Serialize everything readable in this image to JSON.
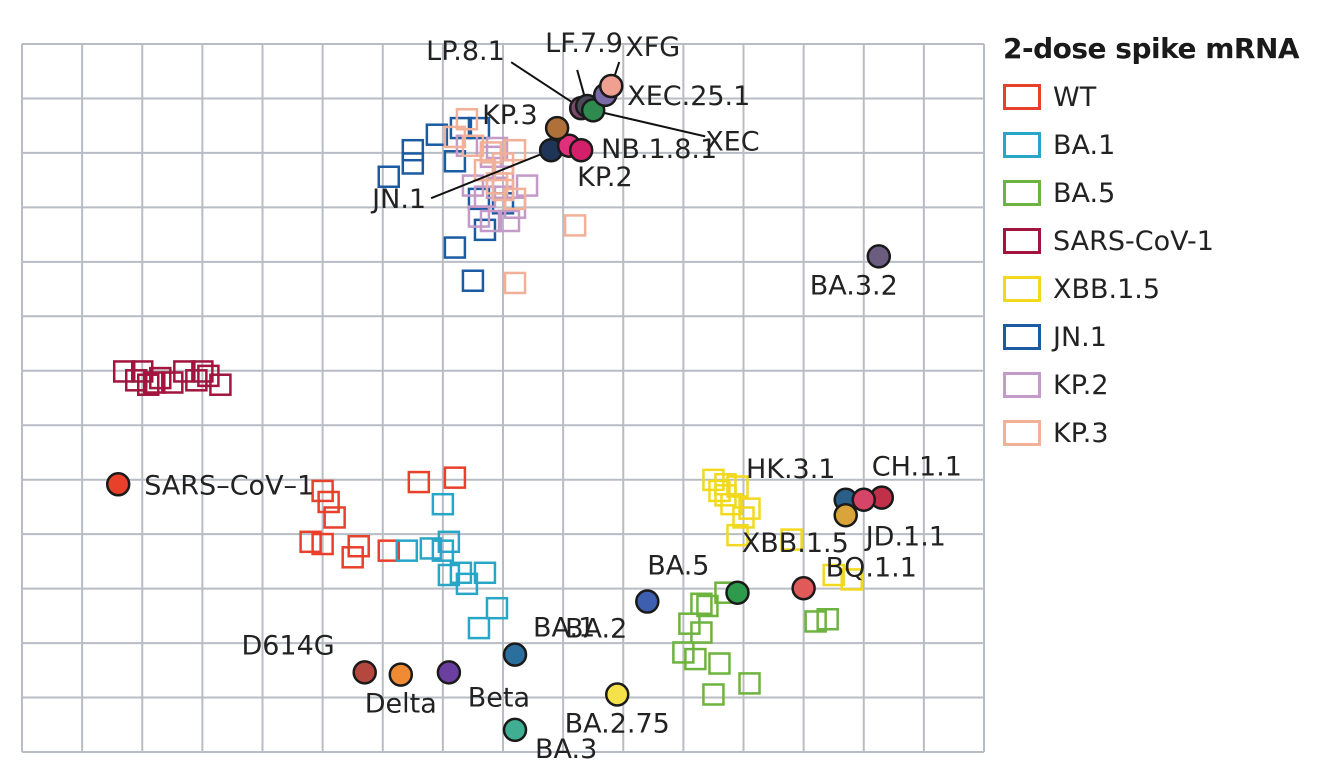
{
  "chart_data": {
    "type": "scatter",
    "title": "",
    "xlabel": "",
    "ylabel": "",
    "grid": true,
    "legend_title": "2-dose spike mRNA",
    "legend_position": "right",
    "sera": [
      {
        "name": "WT",
        "color": "#e8402a",
        "points": [
          [
            5.0,
            -7.1
          ],
          [
            5.1,
            -7.35
          ],
          [
            5.2,
            -7.7
          ],
          [
            6.6,
            -6.9
          ],
          [
            7.2,
            -6.8
          ],
          [
            5.6,
            -8.35
          ],
          [
            6.1,
            -8.45
          ],
          [
            4.8,
            -8.25
          ],
          [
            5.0,
            -8.3
          ],
          [
            5.5,
            -8.6
          ]
        ]
      },
      {
        "name": "BA.1",
        "color": "#27a6c8",
        "points": [
          [
            7.0,
            -7.4
          ],
          [
            7.1,
            -8.25
          ],
          [
            6.8,
            -8.4
          ],
          [
            6.4,
            -8.45
          ],
          [
            7.0,
            -8.45
          ],
          [
            7.1,
            -9.0
          ],
          [
            7.3,
            -8.95
          ],
          [
            7.7,
            -8.95
          ],
          [
            7.4,
            -9.2
          ],
          [
            7.9,
            -9.75
          ],
          [
            7.6,
            -10.2
          ]
        ]
      },
      {
        "name": "BA.5",
        "color": "#6db33f",
        "points": [
          [
            11.7,
            -9.4
          ],
          [
            11.3,
            -9.65
          ],
          [
            11.4,
            -9.7
          ],
          [
            11.1,
            -10.1
          ],
          [
            11.3,
            -10.3
          ],
          [
            11.0,
            -10.75
          ],
          [
            11.2,
            -10.9
          ],
          [
            11.6,
            -11.0
          ],
          [
            13.2,
            -10.05
          ],
          [
            13.4,
            -10.0
          ],
          [
            11.5,
            -11.7
          ],
          [
            12.1,
            -11.45
          ]
        ]
      },
      {
        "name": "SARS-CoV-1",
        "color": "#a3153e",
        "points": [
          [
            1.7,
            -4.4
          ],
          [
            1.9,
            -4.6
          ],
          [
            2.0,
            -4.4
          ],
          [
            2.1,
            -4.7
          ],
          [
            2.3,
            -4.55
          ],
          [
            2.7,
            -4.4
          ],
          [
            2.9,
            -4.6
          ],
          [
            3.0,
            -4.4
          ],
          [
            3.3,
            -4.7
          ],
          [
            3.1,
            -4.5
          ],
          [
            2.2,
            -4.65
          ],
          [
            2.5,
            -4.65
          ]
        ]
      },
      {
        "name": "XBB.1.5",
        "color": "#f2d81e",
        "points": [
          [
            11.5,
            -6.85
          ],
          [
            11.9,
            -7.0
          ],
          [
            11.6,
            -7.1
          ],
          [
            11.7,
            -7.2
          ],
          [
            11.8,
            -7.4
          ],
          [
            12.1,
            -7.5
          ],
          [
            12.0,
            -7.7
          ],
          [
            11.9,
            -8.1
          ],
          [
            12.8,
            -8.2
          ],
          [
            13.5,
            -9.0
          ],
          [
            13.8,
            -9.1
          ],
          [
            11.7,
            -6.95
          ]
        ]
      },
      {
        "name": "JN.1",
        "color": "#1a5ba2",
        "points": [
          [
            6.9,
            0.95
          ],
          [
            7.3,
            1.1
          ],
          [
            7.6,
            1.1
          ],
          [
            6.5,
            0.6
          ],
          [
            7.2,
            0.35
          ],
          [
            6.1,
            0.0
          ],
          [
            6.5,
            0.3
          ],
          [
            7.6,
            -0.5
          ],
          [
            8.0,
            -0.6
          ],
          [
            7.7,
            -1.2
          ],
          [
            7.2,
            -1.6
          ],
          [
            7.5,
            -2.35
          ]
        ]
      },
      {
        "name": "KP.2",
        "color": "#c49ac8",
        "points": [
          [
            7.9,
            0.65
          ],
          [
            7.4,
            0.7
          ],
          [
            7.8,
            0.45
          ],
          [
            8.0,
            0.0
          ],
          [
            8.4,
            -0.2
          ],
          [
            7.9,
            -0.25
          ],
          [
            7.5,
            -0.2
          ],
          [
            7.7,
            -0.45
          ],
          [
            8.2,
            -0.7
          ],
          [
            7.6,
            -0.9
          ],
          [
            8.1,
            -1.0
          ],
          [
            7.8,
            -1.0
          ]
        ]
      },
      {
        "name": "KP.3",
        "color": "#f1b098",
        "points": [
          [
            7.4,
            1.3
          ],
          [
            7.2,
            0.9
          ],
          [
            7.5,
            0.7
          ],
          [
            8.2,
            0.6
          ],
          [
            7.8,
            0.55
          ],
          [
            8.0,
            0.3
          ],
          [
            7.7,
            0.15
          ],
          [
            7.9,
            -0.15
          ],
          [
            8.0,
            -0.3
          ],
          [
            8.2,
            -0.5
          ],
          [
            9.2,
            -1.1
          ],
          [
            8.2,
            -2.4
          ]
        ]
      }
    ],
    "antigens": [
      {
        "name": "WT-ref",
        "label": "",
        "x": 1.6,
        "y": -6.95,
        "color": "#e8402a"
      },
      {
        "name": "SARS-CoV-1",
        "label": "SARS–CoV–1",
        "x": 1.6,
        "y": -6.95,
        "color": "#e8402a"
      },
      {
        "name": "D614G",
        "label": "D614G",
        "x": 5.7,
        "y": -11.2,
        "color": "#b5483e"
      },
      {
        "name": "Delta",
        "label": "Delta",
        "x": 6.3,
        "y": -11.25,
        "color": "#f08a33"
      },
      {
        "name": "Beta",
        "label": "Beta",
        "x": 7.1,
        "y": -11.2,
        "color": "#6a3fa0"
      },
      {
        "name": "BA.1",
        "label": "BA.1",
        "x": 8.2,
        "y": -10.8,
        "color": "#2a6f9e"
      },
      {
        "name": "BA.3",
        "label": "BA.3",
        "x": 8.2,
        "y": -12.5,
        "color": "#3fae92"
      },
      {
        "name": "BA.2",
        "label": "BA.2",
        "x": 10.4,
        "y": -9.6,
        "color": "#3e5fb0"
      },
      {
        "name": "BA.2.75",
        "label": "BA.2.75",
        "x": 9.9,
        "y": -11.7,
        "color": "#f5e24a"
      },
      {
        "name": "BA.5",
        "label": "BA.5",
        "x": 11.9,
        "y": -9.4,
        "color": "#2e9a4b"
      },
      {
        "name": "BQ.1.1",
        "label": "BQ.1.1",
        "x": 13.0,
        "y": -9.3,
        "color": "#e05a5a"
      },
      {
        "name": "HK.3.1",
        "label": "HK.3.1",
        "x": 13.7,
        "y": -7.3,
        "color": "#2a5f8a"
      },
      {
        "name": "JD.1.1",
        "label": "JD.1.1",
        "x": 13.7,
        "y": -7.65,
        "color": "#d9a53a"
      },
      {
        "name": "CH.1.1",
        "label": "CH.1.1",
        "x": 14.3,
        "y": -7.25,
        "color": "#c03048"
      },
      {
        "name": "XBB.1.5",
        "label": "XBB.1.5",
        "x": 14.0,
        "y": -7.3,
        "color": "#d64568"
      },
      {
        "name": "BA.3.2",
        "label": "BA.3.2",
        "x": 14.25,
        "y": -1.8,
        "color": "#6b5c80"
      },
      {
        "name": "JN.1",
        "label": "JN.1",
        "x": 8.8,
        "y": 0.6,
        "color": "#1e3558"
      },
      {
        "name": "KP.2",
        "label": "KP.2",
        "x": 9.1,
        "y": 0.7,
        "color": "#e0307a"
      },
      {
        "name": "KP.3",
        "label": "KP.3",
        "x": 8.9,
        "y": 1.1,
        "color": "#b0703a"
      },
      {
        "name": "LP.8.1",
        "label": "LP.8.1",
        "x": 9.3,
        "y": 1.55,
        "color": "#7a4a6a"
      },
      {
        "name": "LF.7.9",
        "label": "LF.7.9",
        "x": 9.4,
        "y": 1.6,
        "color": "#4a4a5a"
      },
      {
        "name": "XEC",
        "label": "XEC",
        "x": 9.5,
        "y": 1.5,
        "color": "#2e8a4e"
      },
      {
        "name": "XEC.25.1",
        "label": "XEC.25.1",
        "x": 9.7,
        "y": 1.85,
        "color": "#7a6aa8"
      },
      {
        "name": "XFG",
        "label": "XFG",
        "x": 9.8,
        "y": 2.05,
        "color": "#f0a090"
      },
      {
        "name": "NB.1.8.1",
        "label": "NB.1.8.1",
        "x": 9.3,
        "y": 0.6,
        "color": "#d4206a"
      }
    ],
    "xlim": [
      0,
      16
    ],
    "ylim": [
      -13,
      3
    ]
  }
}
